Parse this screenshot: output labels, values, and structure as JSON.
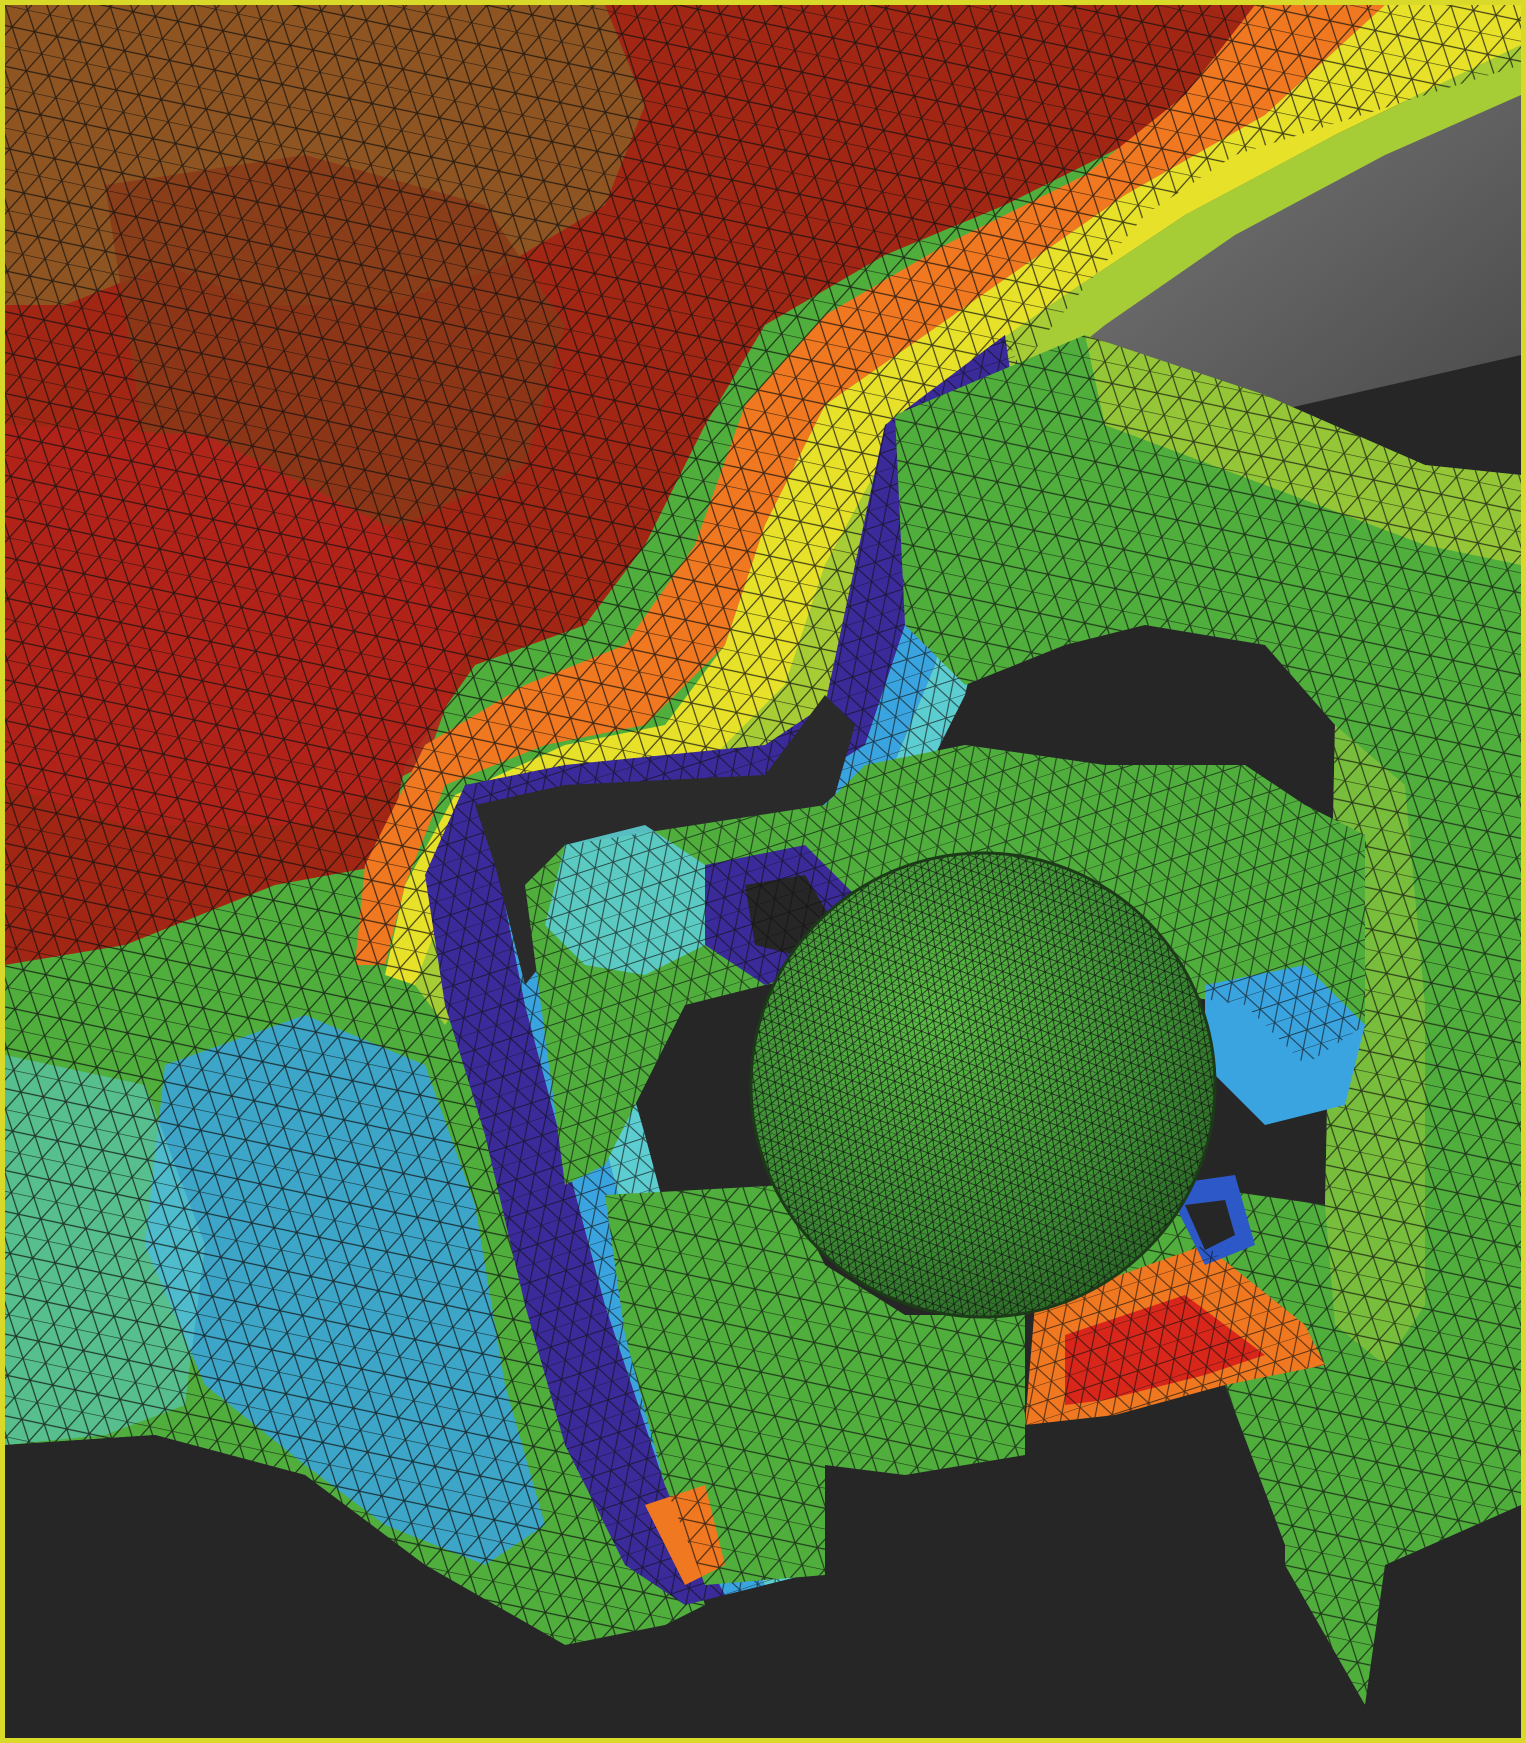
{
  "image": {
    "subject": "finite-element-mesh-contour-plot",
    "colors": {
      "frame": "#d9d92a",
      "background": "#262626",
      "background_light": "#5a5a5a",
      "deep_red": "#8b1f10",
      "red": "#d8261a",
      "brown": "#8a4a1c",
      "orange": "#f07820",
      "yellow": "#e7e12a",
      "yellow_green": "#a6cc36",
      "green": "#4fae3c",
      "dark_green": "#3d8f34",
      "cyan": "#5ccdd0",
      "light_blue": "#3aa4e0",
      "blue": "#2c58c8",
      "indigo": "#3a2a9a",
      "mesh_line": "#111111"
    }
  }
}
